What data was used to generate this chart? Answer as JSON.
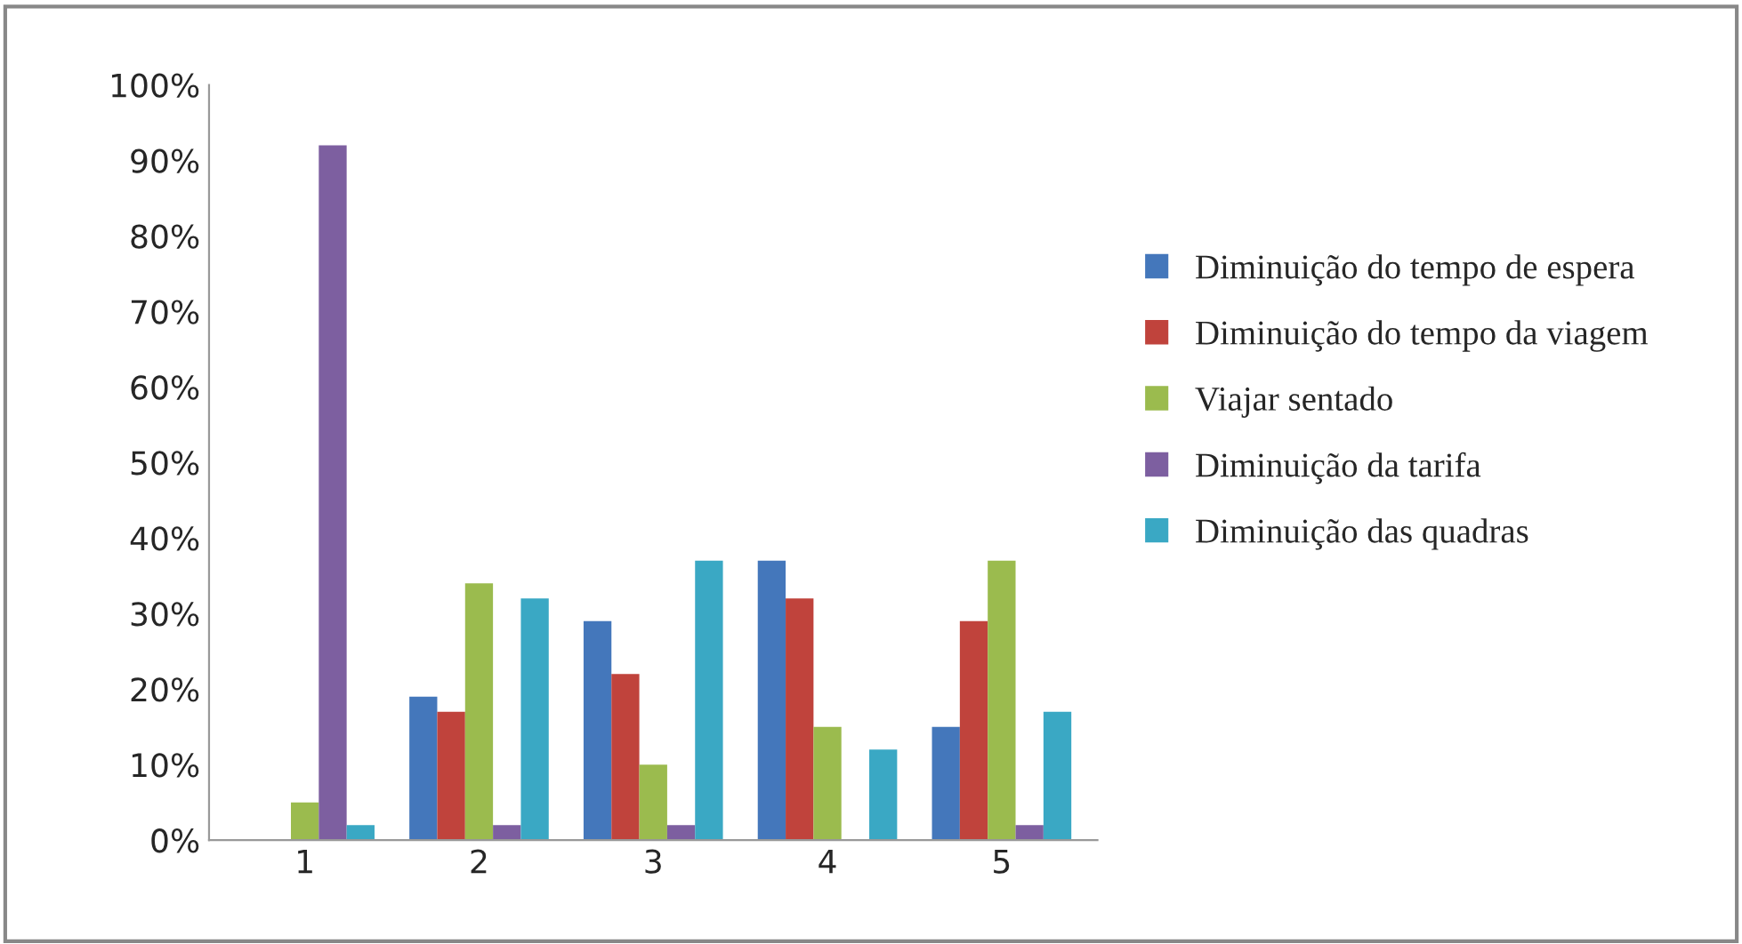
{
  "chart_data": {
    "type": "bar",
    "categories": [
      "1",
      "2",
      "3",
      "4",
      "5"
    ],
    "ylim": [
      0,
      100
    ],
    "yticks": [
      {
        "value": 0,
        "label": "0%"
      },
      {
        "value": 10,
        "label": "10%"
      },
      {
        "value": 20,
        "label": "20%"
      },
      {
        "value": 30,
        "label": "30%"
      },
      {
        "value": 40,
        "label": "40%"
      },
      {
        "value": 50,
        "label": "50%"
      },
      {
        "value": 60,
        "label": "60%"
      },
      {
        "value": 70,
        "label": "70%"
      },
      {
        "value": 80,
        "label": "80%"
      },
      {
        "value": 90,
        "label": "90%"
      },
      {
        "value": 100,
        "label": "100%"
      }
    ],
    "grid": false,
    "legend": "right",
    "series": [
      {
        "name": "Diminuição do tempo de espera",
        "color": "#4477bb",
        "values": [
          0,
          19,
          29,
          37,
          15
        ]
      },
      {
        "name": "Diminuição do tempo da viagem",
        "color": "#c0433c",
        "values": [
          0,
          17,
          22,
          32,
          29
        ]
      },
      {
        "name": "Viajar sentado",
        "color": "#9bbb4e",
        "values": [
          5,
          34,
          10,
          15,
          37
        ]
      },
      {
        "name": "Diminuição da tarifa",
        "color": "#7d5fa0",
        "values": [
          92,
          2,
          2,
          0,
          2
        ]
      },
      {
        "name": "Diminuição das quadras",
        "color": "#3aa8c4",
        "values": [
          2,
          32,
          37,
          12,
          17
        ]
      }
    ]
  }
}
